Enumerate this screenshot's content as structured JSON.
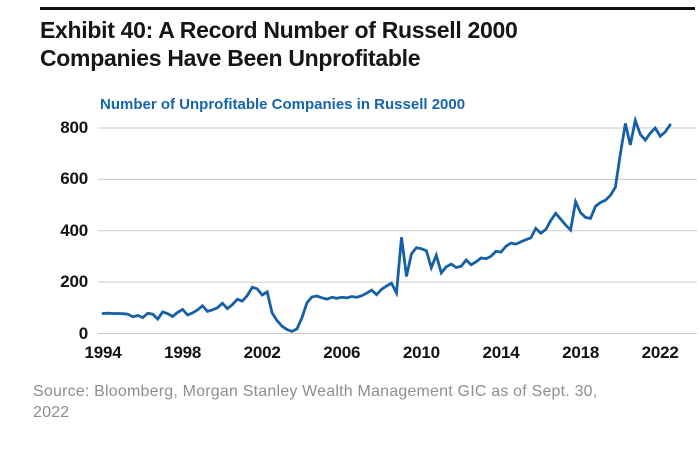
{
  "header": {
    "title_line1": "Exhibit 40: A Record Number of Russell 2000",
    "title_line2": "Companies Have Been Unprofitable"
  },
  "source": {
    "line1": "Source: Bloomberg, Morgan Stanley Wealth Management GIC as of Sept. 30,",
    "line2": "2022"
  },
  "colors": {
    "line_blue": "#1560a8",
    "title_blue": "#1565b0",
    "grid_gray": "#c9c9c9",
    "text_black": "#161616",
    "source_gray": "#8e8e8e"
  },
  "chart_data": {
    "type": "line",
    "title": "Number of Unprofitable Companies in Russell 2000",
    "xlabel": "",
    "ylabel": "",
    "x_start_year": 1994,
    "x_step_years": 0.25,
    "x_end_label": "Sept 2022",
    "xlim": [
      1994,
      2023
    ],
    "ylim": [
      0,
      860
    ],
    "grid": "horizontal",
    "legend_position": "top-left-title",
    "x_tick_labels": [
      "1994",
      "1998",
      "2002",
      "2006",
      "2010",
      "2014",
      "2018",
      "2022"
    ],
    "y_tick_values": [
      0,
      200,
      400,
      600,
      800
    ],
    "y_tick_labels": [
      "0",
      "200",
      "400",
      "600",
      "800"
    ],
    "series": [
      {
        "name": "Number of Unprofitable Companies in Russell 2000",
        "values": [
          78,
          79,
          78,
          78,
          77,
          75,
          65,
          70,
          62,
          79,
          75,
          56,
          84,
          77,
          66,
          82,
          94,
          72,
          80,
          92,
          108,
          86,
          92,
          100,
          118,
          97,
          112,
          133,
          126,
          148,
          180,
          174,
          150,
          162,
          80,
          50,
          28,
          15,
          8,
          18,
          62,
          120,
          142,
          146,
          139,
          134,
          141,
          137,
          141,
          139,
          144,
          141,
          147,
          157,
          169,
          151,
          172,
          185,
          196,
          158,
          375,
          222,
          310,
          334,
          330,
          322,
          256,
          305,
          236,
          260,
          270,
          257,
          262,
          286,
          268,
          279,
          294,
          291,
          301,
          320,
          317,
          340,
          352,
          348,
          357,
          365,
          372,
          409,
          390,
          405,
          440,
          468,
          445,
          422,
          403,
          513,
          470,
          452,
          448,
          495,
          510,
          519,
          538,
          570,
          700,
          818,
          734,
          830,
          775,
          753,
          780,
          800,
          768,
          785,
          812
        ]
      }
    ]
  }
}
